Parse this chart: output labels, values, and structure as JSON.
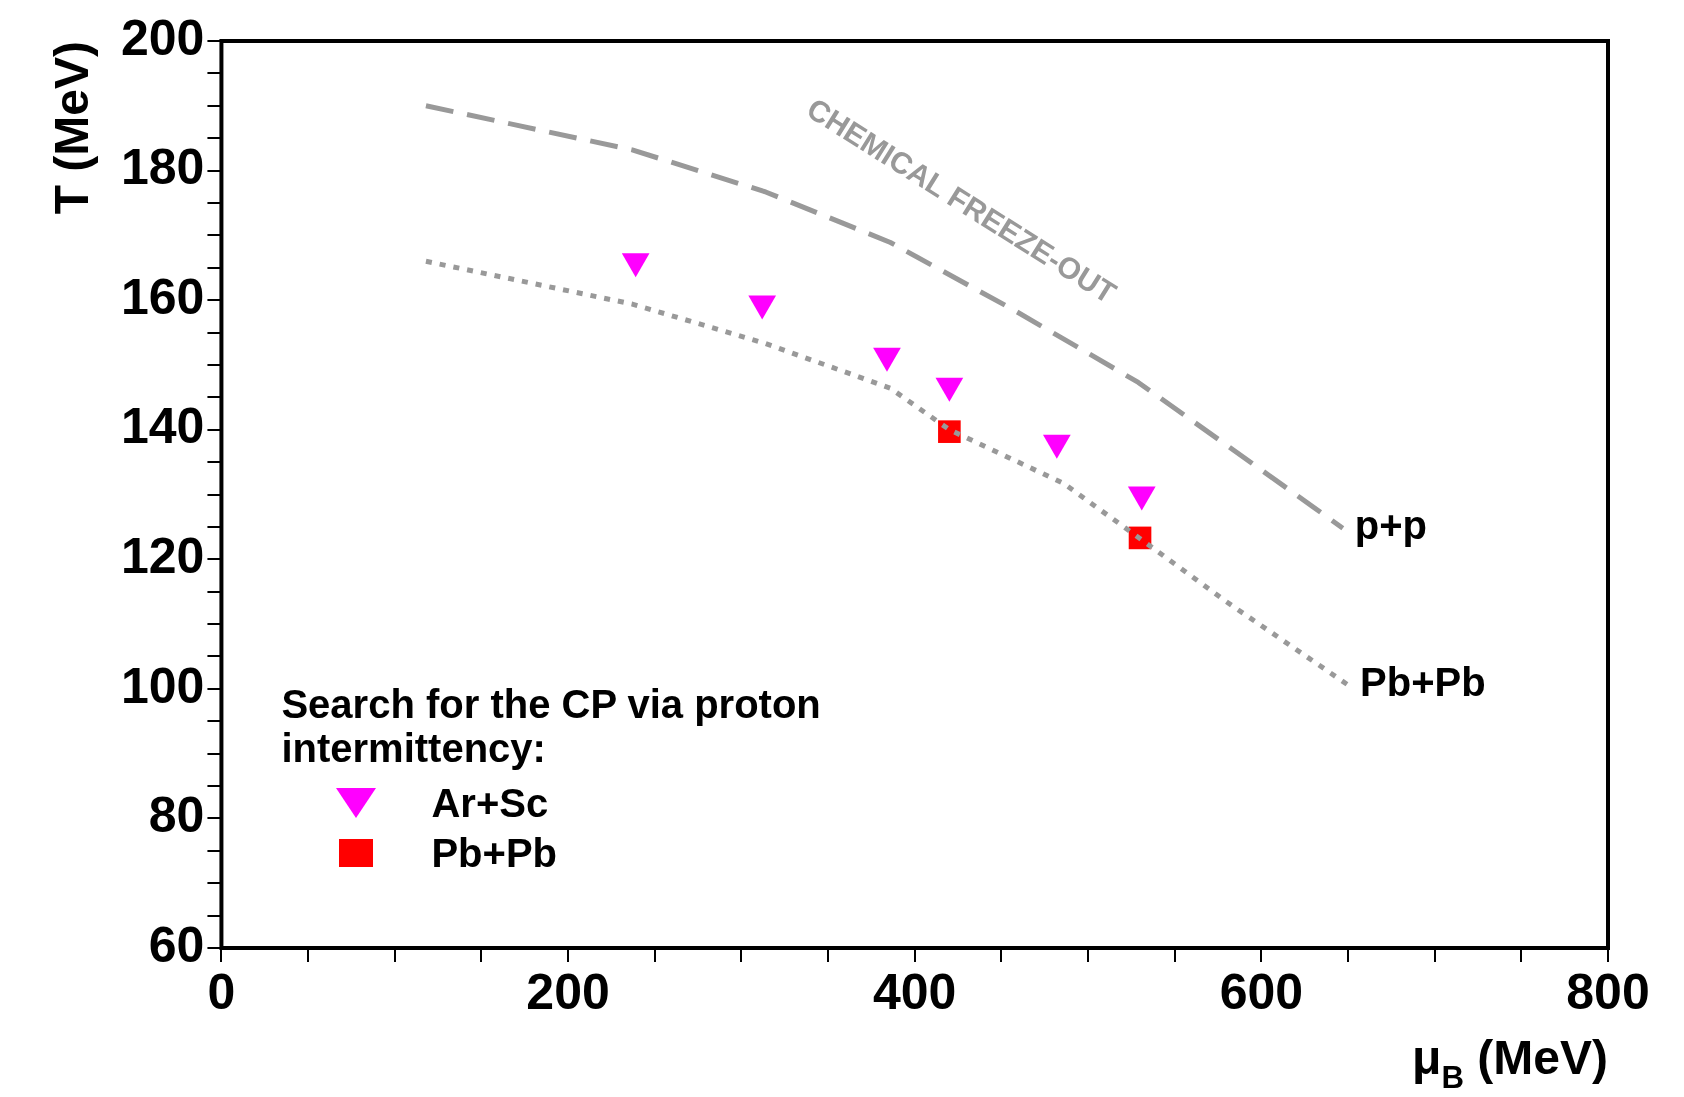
{
  "chart_data": {
    "type": "scatter",
    "xlabel": "μ$_{B}$ (MeV)",
    "ylabel": "T (MeV)",
    "legend_title": "Search for the CP via proton intermittency:",
    "legend": "bottom left",
    "grid": false,
    "xlim": [
      0,
      800
    ],
    "xticks": [
      0,
      {
        "value": 50,
        "label": null
      },
      {
        "value": 100,
        "label": null
      },
      {
        "value": 150,
        "label": null
      },
      200,
      {
        "value": 250,
        "label": null
      },
      {
        "value": 300,
        "label": null
      },
      {
        "value": 350,
        "label": null
      },
      400,
      {
        "value": 450,
        "label": null
      },
      {
        "value": 500,
        "label": null
      },
      {
        "value": 550,
        "label": null
      },
      600,
      {
        "value": 650,
        "label": null
      },
      {
        "value": 700,
        "label": null
      },
      {
        "value": 750,
        "label": null
      },
      800
    ],
    "ylim": [
      60,
      200
    ],
    "yticks": [
      60,
      {
        "value": 65,
        "label": null
      },
      {
        "value": 70,
        "label": null
      },
      {
        "value": 75,
        "label": null
      },
      80,
      {
        "value": 85,
        "label": null
      },
      {
        "value": 90,
        "label": null
      },
      {
        "value": 95,
        "label": null
      },
      100,
      {
        "value": 105,
        "label": null
      },
      {
        "value": 110,
        "label": null
      },
      {
        "value": 115,
        "label": null
      },
      120,
      {
        "value": 125,
        "label": null
      },
      {
        "value": 130,
        "label": null
      },
      {
        "value": 135,
        "label": null
      },
      140,
      {
        "value": 145,
        "label": null
      },
      {
        "value": 150,
        "label": null
      },
      {
        "value": 155,
        "label": null
      },
      160,
      {
        "value": 165,
        "label": null
      },
      {
        "value": 170,
        "label": null
      },
      {
        "value": 175,
        "label": null
      },
      180,
      {
        "value": 185,
        "label": null
      },
      {
        "value": 190,
        "label": null
      },
      {
        "value": 195,
        "label": null
      },
      200
    ],
    "annotations": [
      "CHEMICAL FREEZE-OUT"
    ],
    "series": [
      {
        "name": "p+p",
        "type": "line",
        "line_style": "dashed",
        "marker": "none",
        "color": "#999999",
        "x": [
          118,
          237,
          314,
          386,
          457,
          529,
          579,
          647
        ],
        "values": [
          190,
          183.2,
          176.7,
          168.9,
          158.5,
          147.3,
          137.8,
          124.8
        ]
      },
      {
        "name": "Pb+Pb",
        "type": "line",
        "line_style": "dotted",
        "marker": "none",
        "color": "#999999",
        "x": [
          118,
          237,
          314,
          386,
          420,
          486,
          531,
          579,
          650
        ],
        "values": [
          166,
          159.4,
          153.3,
          146.4,
          140,
          131.7,
          123,
          113.6,
          100.6
        ]
      },
      {
        "name": "Ar+Sc",
        "marker": "triangle",
        "color": "#ff00ff",
        "x": [
          239,
          312,
          384,
          420,
          482,
          531
        ],
        "values": [
          166,
          159.5,
          151.4,
          146.8,
          138,
          130
        ]
      },
      {
        "name": "Pb+Pb",
        "marker": "square",
        "color": "#ff0000",
        "x": [
          420,
          530
        ],
        "values": [
          139.7,
          123.3
        ]
      }
    ]
  }
}
